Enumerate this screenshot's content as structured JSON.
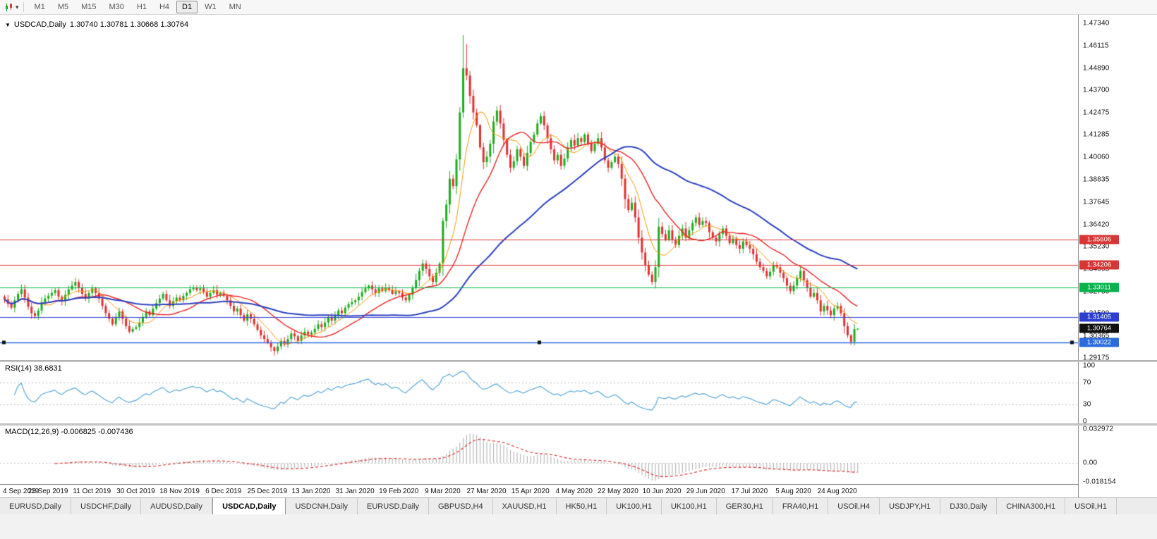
{
  "toolbar": {
    "dropdown_caret": "▾",
    "timeframes": [
      "M1",
      "M5",
      "M15",
      "M30",
      "H1",
      "H4",
      "D1",
      "W1",
      "MN"
    ],
    "active_timeframe": "D1"
  },
  "chart": {
    "symbol_marker": "▼",
    "symbol": "USDCAD,Daily",
    "ohlc_text": "1.30740 1.30781 1.30668 1.30764",
    "price_axis_labels": [
      "1.47340",
      "1.46115",
      "1.44890",
      "1.43700",
      "1.42475",
      "1.41285",
      "1.40060",
      "1.38835",
      "1.37645",
      "1.36420",
      "1.35230",
      "1.34005",
      "1.32780",
      "1.31590",
      "1.30365",
      "1.29175"
    ],
    "hlines": [
      {
        "label": "1.35606",
        "value": 1.35606,
        "color": "#d93535",
        "selected": false
      },
      {
        "label": "1.34206",
        "value": 1.34206,
        "color": "#d93535",
        "selected": false
      },
      {
        "label": "1.33011",
        "value": 1.33011,
        "color": "#00b34a",
        "selected": false
      },
      {
        "label": "1.31405",
        "value": 1.31405,
        "color": "#2c3fd0",
        "selected": false
      },
      {
        "label": "1.30022",
        "value": 1.30022,
        "color": "#2b6bdd",
        "selected": true
      }
    ],
    "current_price": {
      "label": "1.30764",
      "value": 1.30764,
      "color": "#111111"
    },
    "date_axis_labels": [
      "4 Sep 2019",
      "23 Sep 2019",
      "11 Oct 2019",
      "30 Oct 2019",
      "18 Nov 2019",
      "6 Dec 2019",
      "25 Dec 2019",
      "13 Jan 2020",
      "31 Jan 2020",
      "19 Feb 2020",
      "9 Mar 2020",
      "27 Mar 2020",
      "15 Apr 2020",
      "4 May 2020",
      "22 May 2020",
      "10 Jun 2020",
      "29 Jun 2020",
      "17 Jul 2020",
      "5 Aug 2020",
      "24 Aug 2020"
    ]
  },
  "rsi_panel": {
    "label": "RSI(14) 38.6831",
    "axis_labels": [
      {
        "text": "100",
        "value": 100
      },
      {
        "text": "70",
        "value": 70
      },
      {
        "text": "30",
        "value": 30
      },
      {
        "text": "0",
        "value": 0
      }
    ],
    "levels": [
      70,
      30
    ],
    "line_color": "#58a6d8"
  },
  "macd_panel": {
    "label": "MACD(12,26,9) -0.006825 -0.007436",
    "axis_labels": [
      {
        "text": "0.032972",
        "value": 0.032972
      },
      {
        "text": "0.00",
        "value": 0
      },
      {
        "text": "-0.018154",
        "value": -0.018154
      }
    ],
    "histogram_color": "#ababab",
    "signal_color": "#e03333"
  },
  "tabs": {
    "active_index": 3,
    "items": [
      "EURUSD,Daily",
      "USDCHF,Daily",
      "AUDUSD,Daily",
      "USDCAD,Daily",
      "USDCNH,Daily",
      "EURUSD,Daily",
      "GBPUSD,H4",
      "XAUUSD,H1",
      "HK50,H1",
      "UK100,H1",
      "UK100,H1",
      "GER30,H1",
      "FRA40,H1",
      "USOil,H4",
      "USDJPY,H1",
      "DJ30,Daily",
      "CHINA300,H1",
      "USOil,H1"
    ],
    "active_label": "USDCAD,Daily"
  },
  "chart_data": {
    "type": "candlestick",
    "symbol": "USDCAD",
    "timeframe": "Daily",
    "title": "USDCAD,Daily",
    "ylim": [
      1.29175,
      1.4734
    ],
    "x_first_label": "4 Sep 2019",
    "x_last_label": "24 Aug 2020",
    "label_every": 13,
    "up_color": "#1cab1c",
    "down_color": "#e03030",
    "closes": [
      1.3235,
      1.321,
      1.319,
      1.323,
      1.3265,
      1.329,
      1.3245,
      1.3195,
      1.316,
      1.3145,
      1.3175,
      1.322,
      1.324,
      1.3255,
      1.327,
      1.3285,
      1.325,
      1.3225,
      1.326,
      1.329,
      1.331,
      1.333,
      1.33,
      1.3265,
      1.324,
      1.327,
      1.3295,
      1.327,
      1.324,
      1.32,
      1.316,
      1.313,
      1.31,
      1.314,
      1.317,
      1.313,
      1.309,
      1.306,
      1.3075,
      1.3085,
      1.311,
      1.314,
      1.317,
      1.315,
      1.3185,
      1.3215,
      1.324,
      1.3265,
      1.323,
      1.32,
      1.3225,
      1.3245,
      1.323,
      1.3255,
      1.327,
      1.329,
      1.33,
      1.3285,
      1.3295,
      1.3275,
      1.325,
      1.327,
      1.3285,
      1.326,
      1.327,
      1.3255,
      1.323,
      1.32,
      1.317,
      1.3185,
      1.315,
      1.312,
      1.3155,
      1.313,
      1.31,
      1.307,
      1.304,
      1.302,
      1.3,
      1.2975,
      1.2955,
      1.298,
      1.301,
      1.299,
      1.302,
      1.305,
      1.3035,
      1.301,
      1.304,
      1.306,
      1.3045,
      1.3055,
      1.3075,
      1.31,
      1.3085,
      1.311,
      1.314,
      1.312,
      1.315,
      1.3175,
      1.316,
      1.319,
      1.321,
      1.322,
      1.323,
      1.325,
      1.3275,
      1.3295,
      1.331,
      1.329,
      1.327,
      1.3295,
      1.328,
      1.33,
      1.3285,
      1.3265,
      1.328,
      1.327,
      1.3245,
      1.323,
      1.326,
      1.33,
      1.334,
      1.339,
      1.343,
      1.34,
      1.336,
      1.333,
      1.338,
      1.343,
      1.366,
      1.375,
      1.389,
      1.385,
      1.3995,
      1.425,
      1.449,
      1.445,
      1.434,
      1.425,
      1.418,
      1.406,
      1.398,
      1.401,
      1.408,
      1.42,
      1.426,
      1.419,
      1.41,
      1.402,
      1.395,
      1.3985,
      1.405,
      1.401,
      1.396,
      1.403,
      1.409,
      1.413,
      1.419,
      1.423,
      1.418,
      1.411,
      1.405,
      1.399,
      1.402,
      1.396,
      1.4,
      1.406,
      1.41,
      1.407,
      1.411,
      1.409,
      1.413,
      1.408,
      1.404,
      1.408,
      1.411,
      1.406,
      1.399,
      1.395,
      1.398,
      1.401,
      1.397,
      1.389,
      1.378,
      1.372,
      1.376,
      1.368,
      1.357,
      1.349,
      1.342,
      1.337,
      1.333,
      1.341,
      1.363,
      1.359,
      1.356,
      1.361,
      1.356,
      1.353,
      1.358,
      1.362,
      1.357,
      1.361,
      1.365,
      1.368,
      1.364,
      1.366,
      1.365,
      1.36,
      1.357,
      1.355,
      1.359,
      1.362,
      1.358,
      1.354,
      1.3565,
      1.353,
      1.351,
      1.355,
      1.353,
      1.351,
      1.348,
      1.344,
      1.341,
      1.339,
      1.336,
      1.3385,
      1.342,
      1.341,
      1.338,
      1.335,
      1.331,
      1.328,
      1.331,
      1.335,
      1.339,
      1.334,
      1.33,
      1.325,
      1.327,
      1.323,
      1.317,
      1.32,
      1.3175,
      1.315,
      1.3185,
      1.32,
      1.316,
      1.309,
      1.304,
      1.3005,
      1.3074,
      1.30764
    ],
    "wick_overrides": {
      "136": {
        "high": 1.467
      },
      "137": {
        "high": 1.462
      },
      "251": {
        "low": 1.2988
      },
      "253": {
        "high": 1.30781,
        "low": 1.30668
      }
    },
    "ma": [
      {
        "period": 8,
        "color": "#ff9500",
        "width": 1
      },
      {
        "period": 20,
        "color": "#ee2222",
        "width": 1.4
      },
      {
        "period": 55,
        "color": "#2b3fc0",
        "width": 2
      }
    ],
    "rsi_period": 14,
    "macd": {
      "fast": 12,
      "slow": 26,
      "signal": 9
    }
  }
}
